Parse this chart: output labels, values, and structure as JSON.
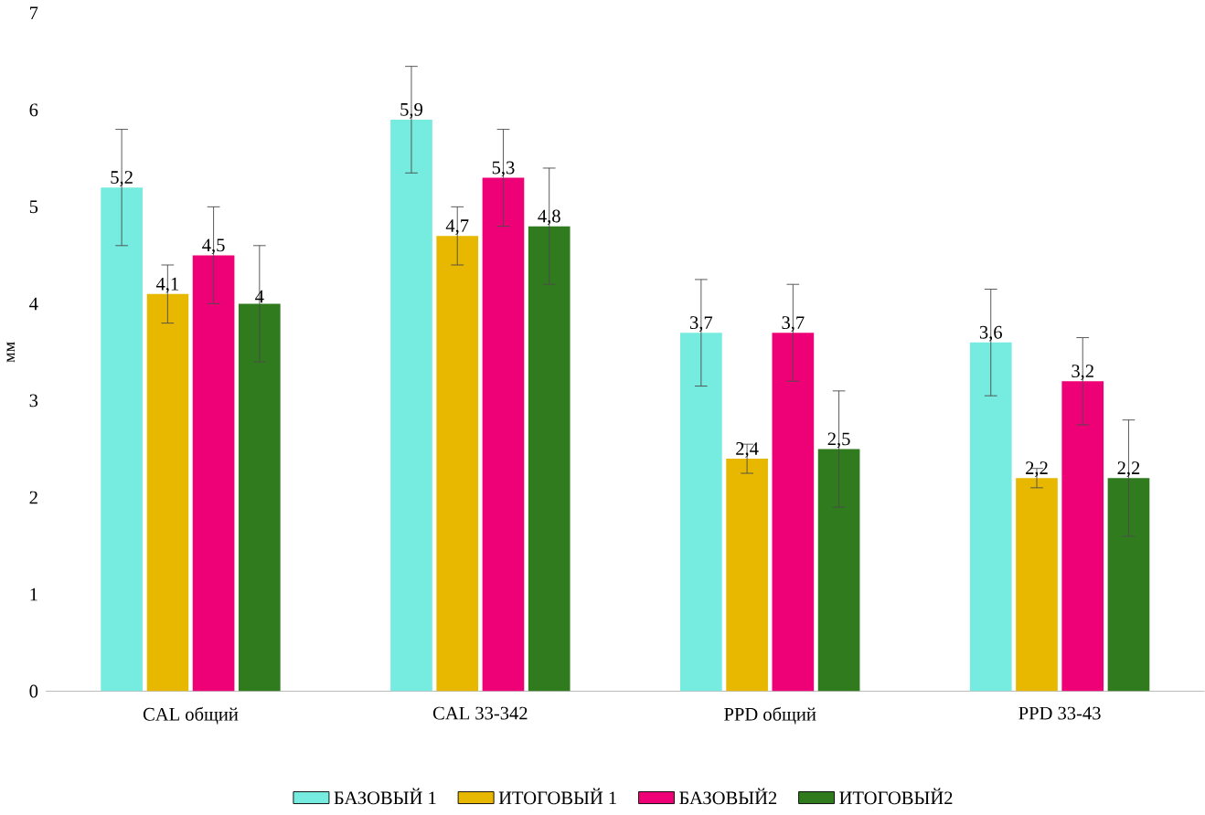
{
  "chart_data": {
    "type": "bar",
    "ylabel": "мм",
    "categories": [
      "CAL общий",
      "CAL 33-342",
      "PPD общий",
      "PPD 33-43"
    ],
    "series": [
      {
        "name": "БАЗОВЫЙ 1",
        "color": "#75ECDF",
        "values": [
          5.2,
          5.9,
          3.7,
          3.6
        ],
        "errors": [
          0.6,
          0.55,
          0.55,
          0.55
        ],
        "value_labels": [
          "5,2",
          "5,9",
          "3,7",
          "3,6"
        ]
      },
      {
        "name": "ИТОГОВЫЙ 1",
        "color": "#E8B800",
        "values": [
          4.1,
          4.7,
          2.4,
          2.2
        ],
        "errors": [
          0.3,
          0.3,
          0.15,
          0.1
        ],
        "value_labels": [
          "4,1",
          "4,7",
          "2,4",
          "2,2"
        ]
      },
      {
        "name": "БАЗОВЫЙ2",
        "color": "#EE0077",
        "values": [
          4.5,
          5.3,
          3.7,
          3.2
        ],
        "errors": [
          0.5,
          0.5,
          0.5,
          0.45
        ],
        "value_labels": [
          "4,5",
          "5,3",
          "3,7",
          "3,2"
        ]
      },
      {
        "name": "ИТОГОВЫЙ2",
        "color": "#2F7B1E",
        "values": [
          4.0,
          4.8,
          2.5,
          2.2
        ],
        "errors": [
          0.6,
          0.6,
          0.6,
          0.6
        ],
        "value_labels": [
          "4",
          "4,8",
          "2,5",
          "2,2"
        ]
      }
    ],
    "ylim": [
      0,
      7
    ],
    "yticks": [
      0,
      1,
      2,
      3,
      4,
      5,
      6,
      7
    ],
    "grid": false,
    "legend": "bottom"
  }
}
